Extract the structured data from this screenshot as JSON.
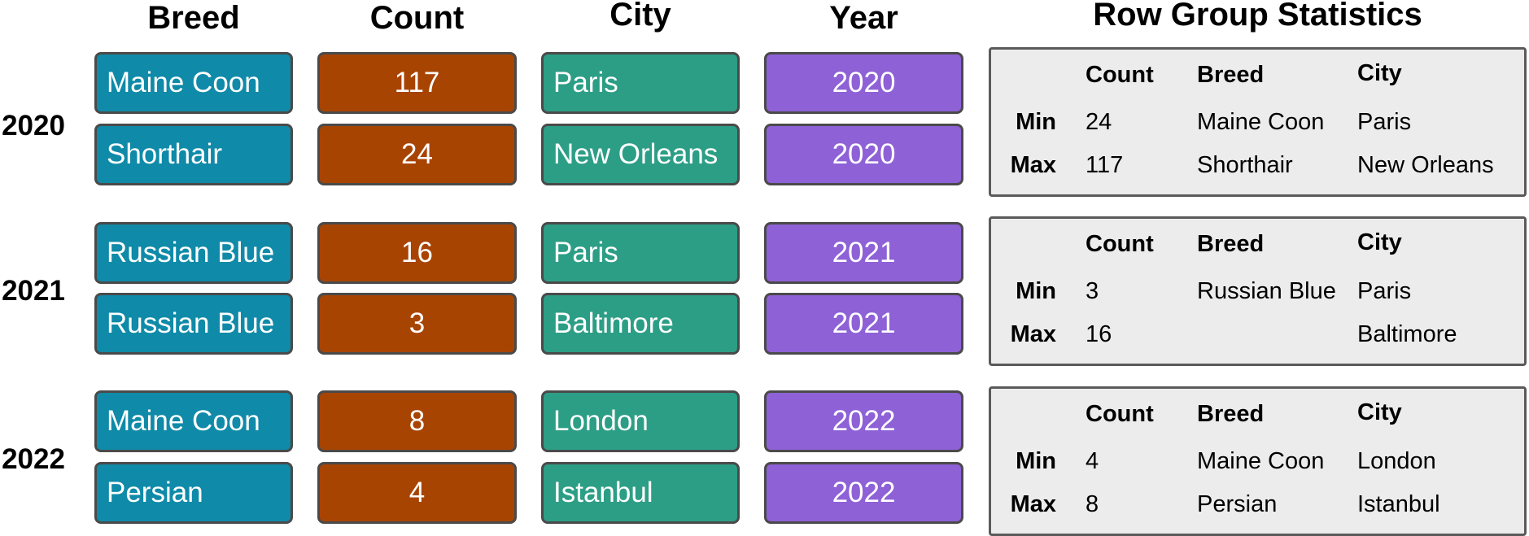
{
  "columns": [
    "Breed",
    "Count",
    "City",
    "Year"
  ],
  "stats_title": "Row Group Statistics",
  "stats_headers": [
    "Count",
    "Breed",
    "City"
  ],
  "stats_row_labels": [
    "Min",
    "Max"
  ],
  "groups": [
    {
      "label": "2020",
      "rows": [
        {
          "breed": "Maine Coon",
          "count": "117",
          "city": "Paris",
          "year": "2020"
        },
        {
          "breed": "Shorthair",
          "count": "24",
          "city": "New Orleans",
          "year": "2020"
        }
      ],
      "stats": {
        "min": {
          "count": "24",
          "breed": "Maine Coon",
          "city": "Paris"
        },
        "max": {
          "count": "117",
          "breed": "Shorthair",
          "city": "New Orleans"
        }
      }
    },
    {
      "label": "2021",
      "rows": [
        {
          "breed": "Russian Blue",
          "count": "16",
          "city": "Paris",
          "year": "2021"
        },
        {
          "breed": "Russian Blue",
          "count": "3",
          "city": "Baltimore",
          "year": "2021"
        }
      ],
      "stats": {
        "min": {
          "count": "3",
          "breed": "Russian Blue",
          "city": "Paris"
        },
        "max": {
          "count": "16",
          "breed": "",
          "city": "Baltimore"
        }
      }
    },
    {
      "label": "2022",
      "rows": [
        {
          "breed": "Maine Coon",
          "count": "8",
          "city": "London",
          "year": "2022"
        },
        {
          "breed": "Persian",
          "count": "4",
          "city": "Istanbul",
          "year": "2022"
        }
      ],
      "stats": {
        "min": {
          "count": "4",
          "breed": "Maine Coon",
          "city": "London"
        },
        "max": {
          "count": "8",
          "breed": "Persian",
          "city": "Istanbul"
        }
      }
    }
  ],
  "colors": {
    "breed": "#0f8aa8",
    "count": "#a84402",
    "city": "#2c9e86",
    "year": "#8e61d6",
    "stats_background": "#ececec",
    "cell_border": "#4a4a4a"
  }
}
